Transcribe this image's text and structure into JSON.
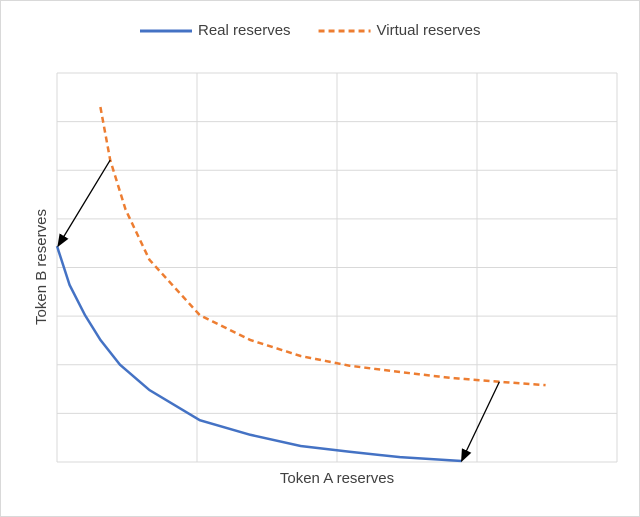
{
  "chart_data": {
    "type": "line",
    "x_label": "Token A reserves",
    "y_label": "Token B reserves",
    "xlim": [
      0,
      4
    ],
    "ylim": [
      0,
      8
    ],
    "xticks": [
      0,
      1,
      2,
      3,
      4
    ],
    "yticks": [
      0,
      1,
      2,
      3,
      4,
      5,
      6,
      7,
      8
    ],
    "tick_labels": false,
    "grid": true,
    "legend": "top",
    "series": [
      {
        "name": "Real reserves",
        "color": "#4472c4",
        "dash": false,
        "x": [
          0,
          0.09,
          0.2,
          0.31,
          0.45,
          0.66,
          1.02,
          1.38,
          1.74,
          2.09,
          2.45,
          2.89
        ],
        "values": [
          4.44,
          3.64,
          3.02,
          2.51,
          2.0,
          1.48,
          0.86,
          0.56,
          0.33,
          0.21,
          0.1,
          0.02
        ]
      },
      {
        "name": "Virtual reserves",
        "color": "#ed7d31",
        "dash": true,
        "x": [
          0.31,
          0.38,
          0.49,
          0.66,
          1.02,
          1.38,
          1.74,
          2.09,
          2.45,
          2.81,
          3.16,
          3.49
        ],
        "values": [
          7.3,
          6.21,
          5.19,
          4.16,
          3.02,
          2.51,
          2.18,
          1.98,
          1.85,
          1.73,
          1.65,
          1.58
        ]
      }
    ]
  }
}
